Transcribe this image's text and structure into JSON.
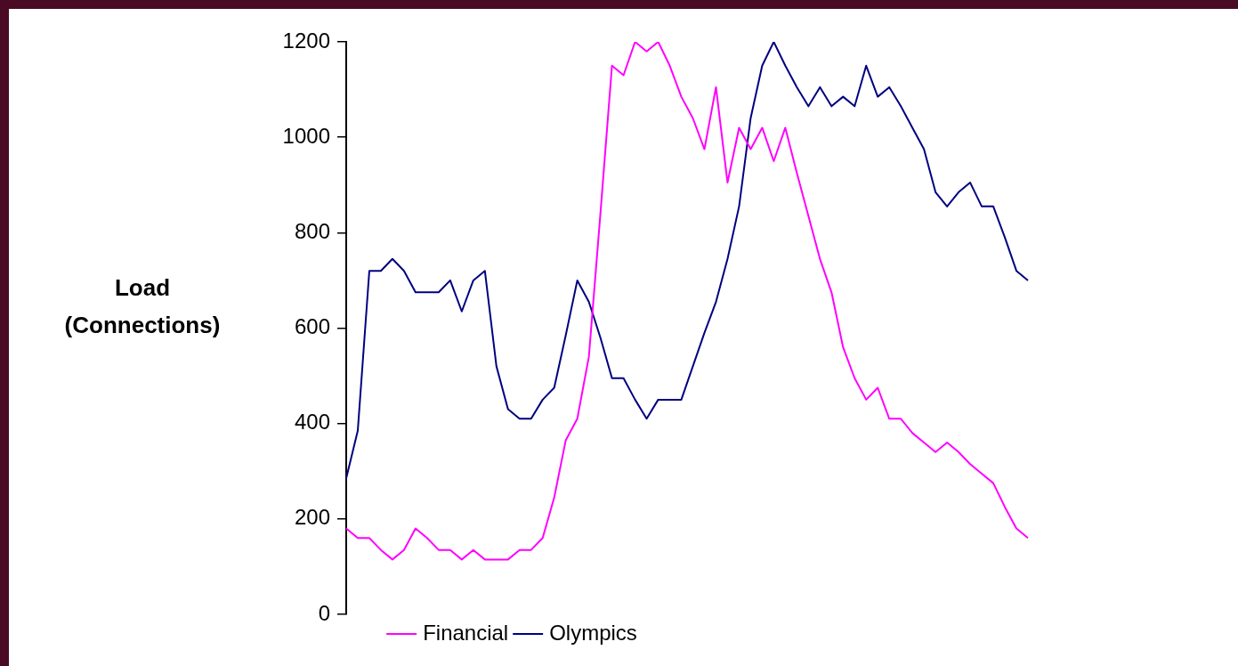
{
  "chart_data": {
    "type": "line",
    "ylabel": "Load (Connections)",
    "categories": [
      null,
      null,
      null,
      null,
      null,
      null,
      null,
      null,
      null,
      null,
      null,
      null,
      null,
      null,
      null,
      null,
      null,
      null,
      null,
      null,
      null,
      null,
      null,
      null,
      null,
      null,
      null,
      null,
      null,
      null,
      null,
      null,
      null,
      null,
      null,
      null,
      null,
      null,
      null,
      null,
      null,
      null,
      null,
      null,
      null,
      null,
      null,
      null,
      null,
      null,
      null,
      null,
      null,
      null,
      null,
      null,
      null,
      null,
      null,
      null
    ],
    "series": [
      {
        "name": "Financial",
        "color": "#ff00ff",
        "values": [
          180,
          160,
          160,
          135,
          115,
          135,
          180,
          160,
          135,
          135,
          115,
          135,
          115,
          115,
          115,
          135,
          135,
          160,
          245,
          365,
          410,
          540,
          840,
          1150,
          1130,
          1200,
          1180,
          1200,
          1150,
          1085,
          1040,
          975,
          1105,
          905,
          1020,
          975,
          1020,
          950,
          1020,
          925,
          835,
          745,
          675,
          560,
          495,
          450,
          475,
          410,
          410,
          380,
          360,
          340,
          360,
          340,
          315,
          295,
          275,
          225,
          180,
          160
        ]
      },
      {
        "name": "Olympics",
        "color": "#000080",
        "values": [
          285,
          385,
          720,
          720,
          745,
          720,
          675,
          675,
          675,
          700,
          635,
          700,
          720,
          520,
          430,
          410,
          410,
          450,
          475,
          585,
          700,
          655,
          580,
          495,
          495,
          450,
          410,
          450,
          450,
          450,
          520,
          590,
          655,
          745,
          855,
          1040,
          1150,
          1200,
          1150,
          1105,
          1065,
          1105,
          1065,
          1085,
          1065,
          1150,
          1085,
          1105,
          1065,
          1020,
          975,
          885,
          855,
          885,
          905,
          855,
          855,
          790,
          720,
          700
        ]
      }
    ],
    "ylim": [
      0,
      1200
    ],
    "yticks": [
      0,
      200,
      400,
      600,
      800,
      1000,
      1200
    ],
    "grid": false,
    "legend": "bottom",
    "marker": "none",
    "line_style": "solid"
  }
}
